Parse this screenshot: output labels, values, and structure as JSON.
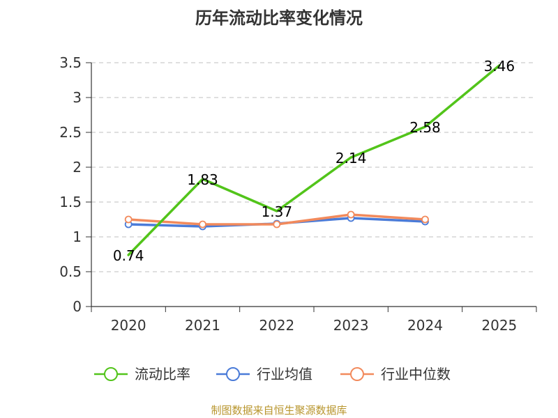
{
  "chart_data": {
    "type": "line",
    "title": "历年流动比率变化情况",
    "categories": [
      "2020",
      "2021",
      "2022",
      "2023",
      "2024",
      "2025"
    ],
    "ylim": [
      0,
      3.5
    ],
    "yticks": [
      "0",
      "0.5",
      "1",
      "1.5",
      "2",
      "2.5",
      "3",
      "3.5"
    ],
    "ytick_values": [
      0,
      0.5,
      1,
      1.5,
      2,
      2.5,
      3,
      3.5
    ],
    "grid": true,
    "legend_position": "bottom",
    "series": [
      {
        "name": "流动比率",
        "color": "#52c41a",
        "values": [
          0.74,
          1.83,
          1.37,
          2.14,
          2.58,
          3.46
        ],
        "labels": [
          "0.74",
          "1.83",
          "1.37",
          "2.14",
          "2.58",
          "3.46"
        ],
        "markers": false
      },
      {
        "name": "行业均值",
        "color": "#4a7bd8",
        "values": [
          1.18,
          1.15,
          1.19,
          1.27,
          1.22,
          null
        ],
        "markers": true
      },
      {
        "name": "行业中位数",
        "color": "#f28a5c",
        "values": [
          1.25,
          1.18,
          1.18,
          1.32,
          1.25,
          null
        ],
        "markers": true
      }
    ]
  },
  "source_text": "制图数据来自恒生聚源数据库"
}
